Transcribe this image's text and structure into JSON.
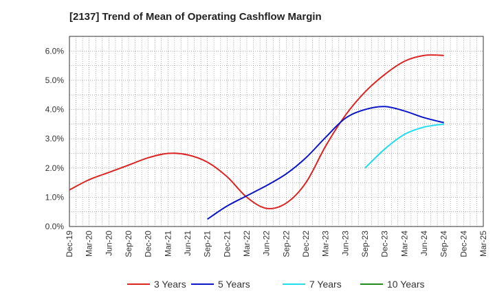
{
  "chart_data": {
    "type": "line",
    "title": "[2137]  Trend of Mean of Operating Cashflow Margin",
    "x": [
      "Dec-19",
      "Mar-20",
      "Jun-20",
      "Sep-20",
      "Dec-20",
      "Mar-21",
      "Jun-21",
      "Sep-21",
      "Dec-21",
      "Mar-22",
      "Jun-22",
      "Sep-22",
      "Dec-22",
      "Mar-23",
      "Jun-23",
      "Sep-23",
      "Dec-23",
      "Mar-24",
      "Jun-24",
      "Sep-24",
      "Dec-24",
      "Mar-25"
    ],
    "ylim": [
      0,
      6.5
    ],
    "yticks": [
      0,
      1,
      2,
      3,
      4,
      5,
      6
    ],
    "ytick_labels": [
      "0.0%",
      "1.0%",
      "2.0%",
      "3.0%",
      "4.0%",
      "5.0%",
      "6.0%"
    ],
    "grid": true,
    "legend_position": "bottom",
    "series": [
      {
        "name": "3 Years",
        "color": "#dd2222",
        "values": [
          1.25,
          1.6,
          1.85,
          2.1,
          2.35,
          2.5,
          2.45,
          2.2,
          1.7,
          1.0,
          0.62,
          0.8,
          1.5,
          2.75,
          3.8,
          4.6,
          5.2,
          5.65,
          5.85,
          5.85,
          null,
          null
        ]
      },
      {
        "name": "5 Years",
        "color": "#0b14c8",
        "values": [
          null,
          null,
          null,
          null,
          null,
          null,
          null,
          0.25,
          0.7,
          1.05,
          1.4,
          1.8,
          2.35,
          3.05,
          3.7,
          4.0,
          4.1,
          3.95,
          3.72,
          3.55,
          null,
          null
        ]
      },
      {
        "name": "7 Years",
        "color": "#22ddee",
        "values": [
          null,
          null,
          null,
          null,
          null,
          null,
          null,
          null,
          null,
          null,
          null,
          null,
          null,
          null,
          null,
          2.0,
          2.65,
          3.15,
          3.4,
          3.5,
          null,
          null
        ]
      },
      {
        "name": "10 Years",
        "color": "#1e8a1e",
        "values": [
          null,
          null,
          null,
          null,
          null,
          null,
          null,
          null,
          null,
          null,
          null,
          null,
          null,
          null,
          null,
          null,
          null,
          null,
          null,
          null,
          null,
          null
        ]
      }
    ]
  }
}
